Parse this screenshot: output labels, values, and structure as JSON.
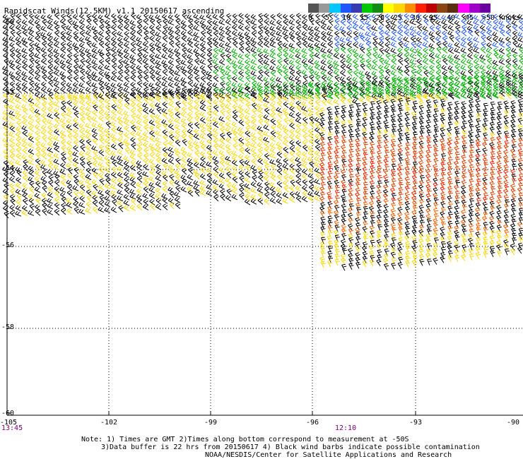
{
  "title": "Rapidscat Winds(12.5KM) v1.1 20150617 ascending",
  "scale": {
    "colors": [
      "#555555",
      "#999999",
      "#00c8ff",
      "#1f55ff",
      "#3a3ab0",
      "#00c800",
      "#128c12",
      "#ffff00",
      "#ffd700",
      "#ff8c00",
      "#ff2000",
      "#c00000",
      "#8b4513",
      "#5a2e0e",
      "#ff00ff",
      "#a000c8",
      "#6a00a0"
    ],
    "labels": [
      "0",
      "5",
      "10",
      "15",
      "20",
      "25",
      "30",
      "35",
      "40",
      "45",
      ">50 knots"
    ]
  },
  "axes": {
    "lat_labels": [
      "-50",
      "-52",
      "-54",
      "-56",
      "-58",
      "-60"
    ],
    "lon_labels": [
      "-105",
      "-102",
      "-99",
      "-96",
      "-93",
      "-90"
    ]
  },
  "time_labels": [
    "13:45",
    "12:10"
  ],
  "notes": [
    "Note: 1) Times are GMT 2)Times along bottom correspond to measurement at -50S",
    "3)Data buffer is 22 hrs from 20150617 4) Black wind barbs indicate possible contamination",
    "NOAA/NESDIS/Center for Satellite Applications and Research"
  ]
}
